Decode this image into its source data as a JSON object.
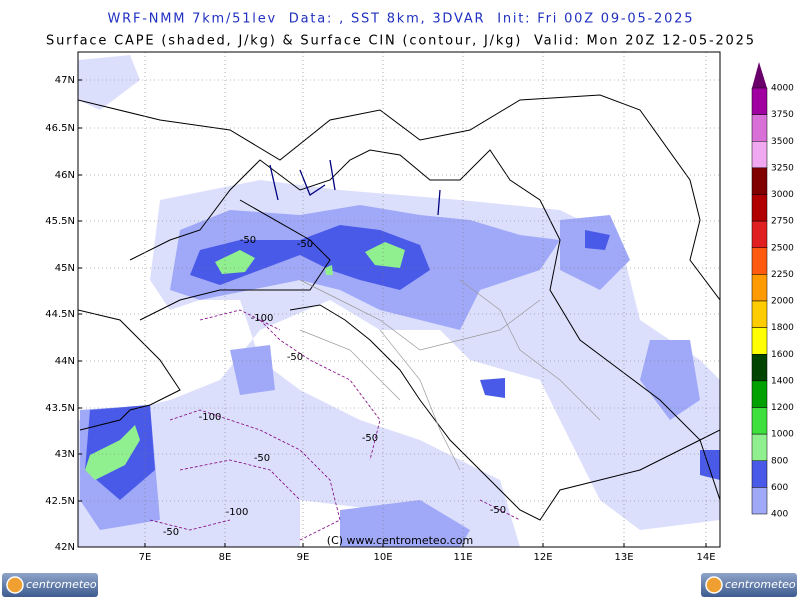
{
  "header": {
    "line1": "WRF-NMM 7km/51lev  Data: , SST 8km, 3DVAR  Init: Fri 00Z 09-05-2025",
    "line2": "Surface CAPE (shaded, J/kg) & Surface CIN (contour, J/kg)  Valid: Mon 20Z 12-05-2025"
  },
  "map": {
    "lat_labels": [
      "47N",
      "46.5N",
      "46N",
      "45.5N",
      "45N",
      "44.5N",
      "44N",
      "43.5N",
      "43N",
      "42.5N",
      "42N"
    ],
    "lon_labels": [
      "7E",
      "8E",
      "9E",
      "10E",
      "11E",
      "12E",
      "13E",
      "14E"
    ],
    "contour_labels": [
      "-50",
      "-50",
      "-100",
      "-50",
      "-100",
      "-50",
      "-50",
      "-100",
      "-50",
      "-50"
    ],
    "copyright": "(C) www.centrometeo.com"
  },
  "colorbar": {
    "levels": [
      4000,
      3750,
      3500,
      3250,
      3000,
      2750,
      2500,
      2250,
      2000,
      1800,
      1600,
      1400,
      1200,
      1000,
      800,
      600,
      400
    ],
    "colors": [
      "#a000a0",
      "#d870d8",
      "#f0a8f0",
      "#800000",
      "#b00000",
      "#e02020",
      "#ff5a10",
      "#ff9a00",
      "#ffcc00",
      "#ffff00",
      "#004400",
      "#00a000",
      "#3ee03e",
      "#90f090",
      "#4a5ae8",
      "#a0a8f8",
      "#dcdffc"
    ]
  },
  "logos": {
    "left": "centrometeo",
    "right": "centrometeo"
  }
}
